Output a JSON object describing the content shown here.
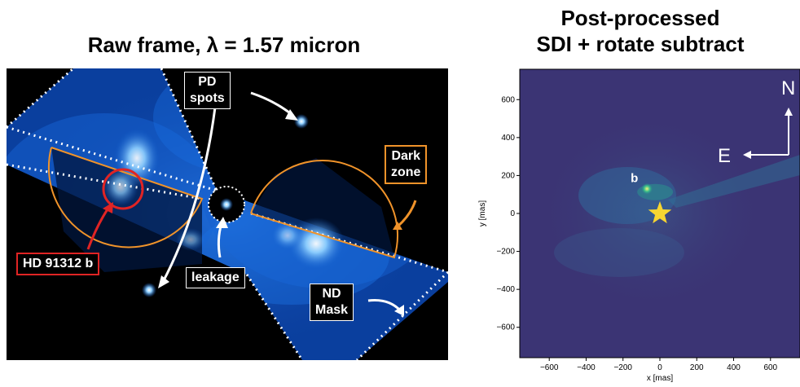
{
  "left_panel": {
    "title": "Raw frame, λ = 1.57 micron",
    "labels": {
      "pd_spots": [
        "PD",
        "spots"
      ],
      "dark_zone": [
        "Dark",
        "zone"
      ],
      "companion": "HD 91312 b",
      "leakage": "leakage",
      "nd_mask": [
        "ND",
        "Mask"
      ]
    },
    "colors": {
      "annotation_orange": "#f0932a",
      "companion_red": "#e02424",
      "arrow_white": "#ffffff"
    }
  },
  "right_panel": {
    "title_lines": [
      "Post-processed",
      "SDI + rotate subtract"
    ],
    "companion_label": "b",
    "compass": {
      "north": "N",
      "east": "E"
    },
    "star_color": "#f7d531"
  },
  "chart_data": {
    "type": "heatmap",
    "xlabel": "x [mas]",
    "ylabel": "y [mas]",
    "xlim": [
      -760,
      760
    ],
    "ylim": [
      -760,
      760
    ],
    "xticks": [
      -600,
      -400,
      -200,
      0,
      200,
      400,
      600
    ],
    "yticks": [
      -600,
      -400,
      -200,
      0,
      200,
      400,
      600
    ],
    "xtick_labels": [
      "−600",
      "−400",
      "−200",
      "0",
      "200",
      "400",
      "600"
    ],
    "ytick_labels": [
      "−600",
      "−400",
      "−200",
      "0",
      "200",
      "400",
      "600"
    ],
    "star_position": [
      0,
      0
    ],
    "companion_position": [
      -70,
      130
    ]
  }
}
